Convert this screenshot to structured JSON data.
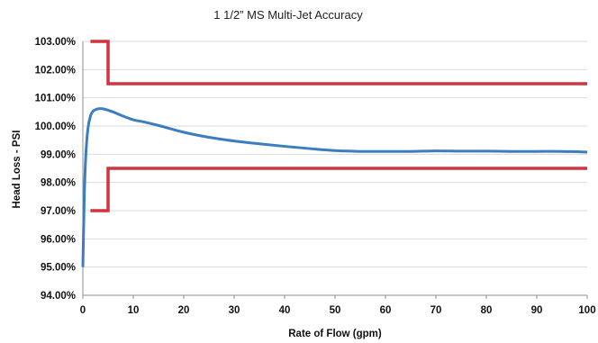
{
  "chart_data": {
    "type": "line",
    "title": "1 1/2” MS Multi-Jet Accuracy",
    "xlabel": "Rate of Flow (gpm)",
    "ylabel": "Head Loss - PSI",
    "xlim": [
      0,
      100
    ],
    "ylim": [
      94,
      103
    ],
    "x_ticks": [
      "0",
      "10",
      "20",
      "30",
      "40",
      "50",
      "60",
      "70",
      "80",
      "90",
      "100"
    ],
    "y_ticks": [
      "94.00%",
      "95.00%",
      "96.00%",
      "97.00%",
      "98.00%",
      "99.00%",
      "100.00%",
      "101.00%",
      "102.00%",
      "103.00%"
    ],
    "grid": "horizontal",
    "legend": "none",
    "series": [
      {
        "color": "#3a7dc0",
        "x": [
          0,
          0.3,
          0.6,
          1,
          1.5,
          2,
          2.5,
          3,
          3.5,
          4,
          5,
          6,
          8,
          10,
          12,
          15,
          20,
          25,
          30,
          35,
          40,
          45,
          50,
          55,
          60,
          65,
          70,
          75,
          80,
          85,
          90,
          95,
          100
        ],
        "y": [
          95.0,
          97.6,
          99.0,
          99.9,
          100.35,
          100.52,
          100.58,
          100.61,
          100.62,
          100.61,
          100.56,
          100.5,
          100.35,
          100.22,
          100.15,
          100.02,
          99.78,
          99.6,
          99.47,
          99.37,
          99.28,
          99.2,
          99.13,
          99.1,
          99.1,
          99.1,
          99.12,
          99.11,
          99.11,
          99.1,
          99.1,
          99.1,
          99.08
        ]
      },
      {
        "color": "#d1343f",
        "x": [
          1.5,
          5,
          5,
          100
        ],
        "y": [
          103.0,
          103.0,
          101.5,
          101.5
        ]
      },
      {
        "color": "#d1343f",
        "x": [
          1.5,
          5,
          5,
          100
        ],
        "y": [
          97.0,
          97.0,
          98.5,
          98.5
        ]
      }
    ]
  }
}
